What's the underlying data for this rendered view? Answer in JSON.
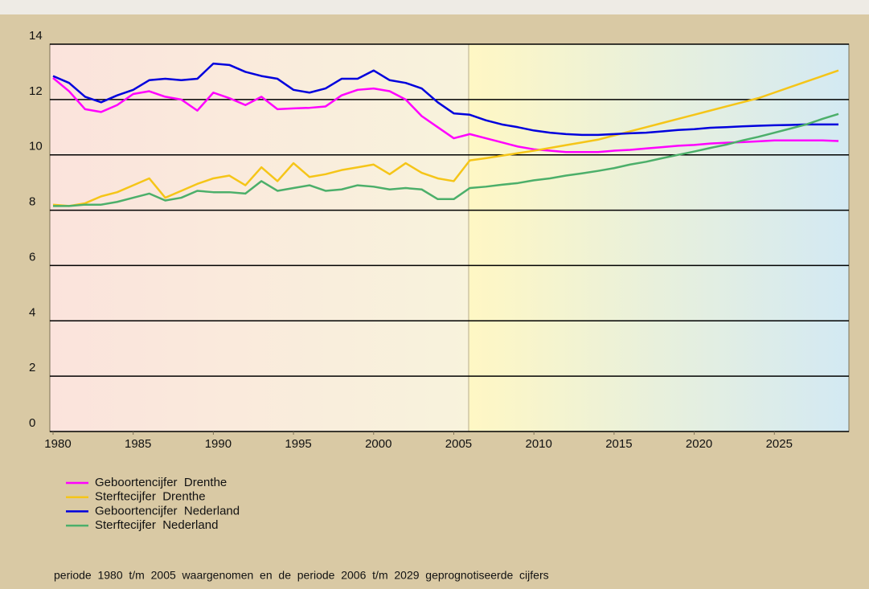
{
  "chart_data": {
    "type": "line",
    "x": [
      1980,
      1981,
      1982,
      1983,
      1984,
      1985,
      1986,
      1987,
      1988,
      1989,
      1990,
      1991,
      1992,
      1993,
      1994,
      1995,
      1996,
      1997,
      1998,
      1999,
      2000,
      2001,
      2002,
      2003,
      2004,
      2005,
      2006,
      2007,
      2008,
      2009,
      2010,
      2011,
      2012,
      2013,
      2014,
      2015,
      2016,
      2017,
      2018,
      2019,
      2020,
      2021,
      2022,
      2023,
      2024,
      2025,
      2026,
      2027,
      2028,
      2029
    ],
    "series": [
      {
        "name": "Geboortencijfer  Drenthe",
        "color": "#ff00ff",
        "values": [
          12.78,
          12.3,
          11.65,
          11.55,
          11.8,
          12.2,
          12.3,
          12.1,
          12.0,
          11.6,
          12.25,
          12.05,
          11.8,
          12.1,
          11.65,
          11.68,
          11.7,
          11.75,
          12.15,
          12.35,
          12.4,
          12.3,
          12.0,
          11.4,
          11.0,
          10.6,
          10.75,
          10.6,
          10.45,
          10.3,
          10.2,
          10.15,
          10.1,
          10.1,
          10.1,
          10.15,
          10.18,
          10.23,
          10.28,
          10.33,
          10.36,
          10.41,
          10.44,
          10.46,
          10.49,
          10.52,
          10.52,
          10.52,
          10.52,
          10.5
        ]
      },
      {
        "name": "Sterftecijfer  Drenthe",
        "color": "#f5c518",
        "values": [
          8.2,
          8.15,
          8.25,
          8.5,
          8.65,
          8.9,
          9.15,
          8.45,
          8.7,
          8.95,
          9.15,
          9.25,
          8.9,
          9.55,
          9.05,
          9.7,
          9.2,
          9.3,
          9.45,
          9.55,
          9.65,
          9.3,
          9.7,
          9.35,
          9.15,
          9.05,
          9.8,
          9.88,
          9.97,
          10.06,
          10.15,
          10.25,
          10.35,
          10.45,
          10.55,
          10.7,
          10.85,
          11.0,
          11.15,
          11.3,
          11.45,
          11.6,
          11.75,
          11.9,
          12.05,
          12.25,
          12.45,
          12.65,
          12.85,
          13.05
        ]
      },
      {
        "name": "Geboortencijfer  Nederland",
        "color": "#0000dd",
        "values": [
          12.85,
          12.6,
          12.1,
          11.9,
          12.15,
          12.35,
          12.7,
          12.75,
          12.7,
          12.75,
          13.3,
          13.25,
          13.0,
          12.85,
          12.75,
          12.35,
          12.25,
          12.4,
          12.75,
          12.75,
          13.05,
          12.7,
          12.6,
          12.4,
          11.9,
          11.5,
          11.45,
          11.25,
          11.1,
          11.0,
          10.88,
          10.8,
          10.75,
          10.72,
          10.72,
          10.75,
          10.78,
          10.8,
          10.85,
          10.9,
          10.93,
          10.98,
          11.0,
          11.03,
          11.05,
          11.07,
          11.08,
          11.1,
          11.1,
          11.1
        ]
      },
      {
        "name": "Sterftecijfer  Nederland",
        "color": "#4caf6a",
        "values": [
          8.15,
          8.15,
          8.2,
          8.2,
          8.3,
          8.45,
          8.6,
          8.35,
          8.45,
          8.7,
          8.65,
          8.65,
          8.6,
          9.05,
          8.7,
          8.8,
          8.9,
          8.7,
          8.75,
          8.9,
          8.85,
          8.75,
          8.8,
          8.75,
          8.4,
          8.4,
          8.8,
          8.85,
          8.92,
          8.98,
          9.08,
          9.15,
          9.25,
          9.33,
          9.42,
          9.52,
          9.65,
          9.75,
          9.88,
          10.0,
          10.12,
          10.25,
          10.37,
          10.52,
          10.65,
          10.8,
          10.95,
          11.1,
          11.3,
          11.48
        ]
      }
    ],
    "xlim": [
      1979.8,
      2029.65
    ],
    "xticks": [
      1980,
      1985,
      1990,
      1995,
      2000,
      2005,
      2010,
      2015,
      2020,
      2025
    ],
    "ylim": [
      0,
      14
    ],
    "yticks": [
      0,
      2,
      4,
      6,
      8,
      10,
      12,
      14
    ],
    "grid": true,
    "footnote": "periode  1980  t/m  2005  waargenomen  en  de  periode  2006  t/m  2029  geprognotiseerde  cijfers"
  }
}
